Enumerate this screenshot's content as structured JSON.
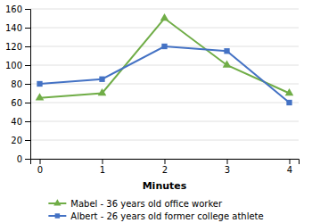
{
  "chart_data": {
    "type": "line",
    "xlabel": "Minutes",
    "x": [
      0,
      1,
      2,
      3,
      4
    ],
    "xlim": [
      -0.15,
      4.15
    ],
    "xticks": [
      0,
      1,
      2,
      3,
      4
    ],
    "ylim": [
      0,
      160
    ],
    "yticks": [
      0,
      20,
      40,
      60,
      80,
      100,
      120,
      140,
      160
    ],
    "grid": true,
    "legend": "bottom",
    "series": [
      {
        "name": "Mabel - 36 years old office worker",
        "color": "#70ad47",
        "marker": "triangle",
        "values": [
          65,
          70,
          150,
          100,
          70
        ]
      },
      {
        "name": "Albert - 26 years old former college athlete",
        "color": "#4472c4",
        "marker": "square",
        "values": [
          80,
          85,
          120,
          115,
          60
        ]
      }
    ]
  }
}
